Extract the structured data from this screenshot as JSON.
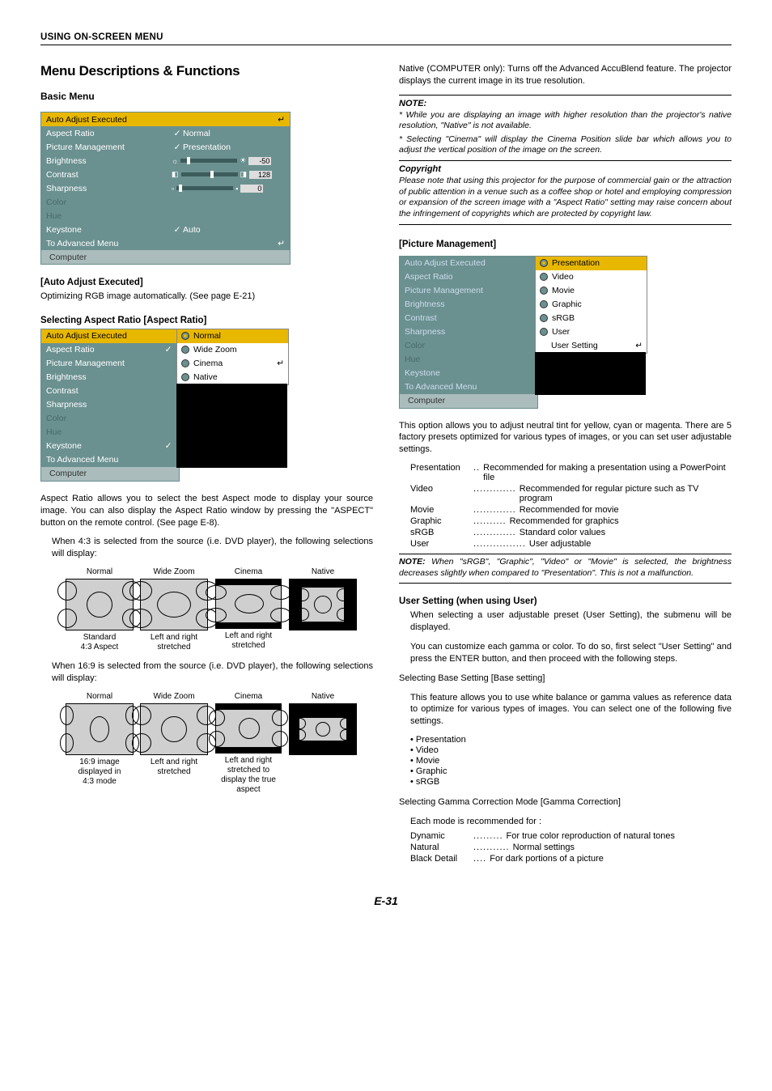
{
  "page_header": "USING ON-SCREEN MENU",
  "page_number": "E-31",
  "left": {
    "title": "Menu Descriptions & Functions",
    "basic_menu": "Basic Menu",
    "panel1": {
      "rows": [
        "Auto Adjust Executed",
        "Aspect Ratio",
        "Picture Management",
        "Brightness",
        "Contrast",
        "Sharpness",
        "Color",
        "Hue",
        "Keystone",
        "To Advanced Menu"
      ],
      "r1_val": "Normal",
      "r2_val": "Presentation",
      "bright_val": "-50",
      "contrast_val": "128",
      "sharp_val": "0",
      "keystone_val": "Auto",
      "foot": "Computer"
    },
    "auto_h": "[Auto Adjust Executed]",
    "auto_p": "Optimizing RGB image automatically. (See page E-21)",
    "aspect_h": "Selecting Aspect Ratio [Aspect Ratio]",
    "panel2": {
      "left_rows": [
        "Auto Adjust Executed",
        "Aspect Ratio",
        "Picture Management",
        "Brightness",
        "Contrast",
        "Sharpness",
        "Color",
        "Hue",
        "Keystone",
        "To Advanced Menu"
      ],
      "foot": "Computer",
      "pop": [
        "Normal",
        "Wide Zoom",
        "Cinema",
        "Native"
      ]
    },
    "aspect_p": "Aspect Ratio allows you to select the best Aspect mode to display your source image. You can also display the Aspect Ratio window by pressing the \"ASPECT\" button on the remote control. (See page E-8).",
    "p43": "When 4:3 is selected from the source (i.e. DVD player), the following selections will display:",
    "labels43": [
      "Normal",
      "Wide Zoom",
      "Cinema",
      "Native"
    ],
    "caps43": [
      "Standard\n4:3 Aspect",
      "Left and right\nstretched",
      "Left and right\nstretched",
      ""
    ],
    "p169": "When 16:9 is selected from the source (i.e. DVD player), the following selections will display:",
    "labels169": [
      "Normal",
      "Wide Zoom",
      "Cinema",
      "Native"
    ],
    "caps169": [
      "16:9 image\ndisplayed in\n4:3 mode",
      "Left and right\nstretched",
      "Left and right\nstretched to\ndisplay the true\naspect",
      ""
    ]
  },
  "right": {
    "native_p": "Native (COMPUTER only): Turns off the Advanced AccuBlend feature. The projector displays the current image in its true resolution.",
    "note_h": "NOTE:",
    "note1": "* While you are displaying an image with higher resolution than the projector's native resolution, \"Native\" is not available.",
    "note2": "* Selecting \"Cinema\" will display the Cinema Position slide bar which allows you to adjust the vertical position of the image on the screen.",
    "copy_h": "Copyright",
    "copy_p": "Please note that using this projector for the purpose of commercial gain or the attraction of public attention in a venue such as a coffee shop or hotel and employing compression or expansion of the screen image with a \"Aspect Ratio\" setting may raise concern about the infringement of copyrights which are protected by copyright law.",
    "pm_h": "[Picture Management]",
    "panel3": {
      "left_rows": [
        "Auto Adjust Executed",
        "Aspect Ratio",
        "Picture Management",
        "Brightness",
        "Contrast",
        "Sharpness",
        "Color",
        "Hue",
        "Keystone",
        "To Advanced Menu"
      ],
      "foot": "Computer",
      "pop": [
        "Presentation",
        "Video",
        "Movie",
        "Graphic",
        "sRGB",
        "User",
        "User Setting"
      ]
    },
    "pm_p": "This option allows you to adjust neutral tint for yellow, cyan or magenta. There are 5 factory presets optimized for various types of images, or you can set user adjustable settings.",
    "presets": [
      {
        "t": "Presentation",
        "d": "Recommended for making a presentation using a PowerPoint file"
      },
      {
        "t": "Video",
        "d": "Recommended for regular picture such as TV program"
      },
      {
        "t": "Movie",
        "d": "Recommended for movie"
      },
      {
        "t": "Graphic",
        "d": "Recommended for graphics"
      },
      {
        "t": "sRGB",
        "d": "Standard color values"
      },
      {
        "t": "User",
        "d": "User adjustable"
      }
    ],
    "note3": "When \"sRGB\", \"Graphic\", \"Video\" or \"Movie\" is selected, the brightness decreases slightly when compared to \"Presentation\". This is not a malfunction.",
    "user_h": "User Setting (when using User)",
    "user_p1": "When selecting a user adjustable preset (User Setting), the submenu will be displayed.",
    "user_p2": "You can customize each gamma or color. To do so, first select \"User Setting\" and press the ENTER button, and then proceed with the following steps.",
    "base_h": "Selecting Base Setting [Base setting]",
    "base_p": "This feature allows you to use white balance or gamma values as reference data to optimize for various types of images. You can select one of the following five settings.",
    "base_items": [
      "Presentation",
      "Video",
      "Movie",
      "Graphic",
      "sRGB"
    ],
    "gamma_h": "Selecting Gamma Correction Mode [Gamma Correction]",
    "gamma_intro": "Each mode is recommended for :",
    "gamma": [
      {
        "t": "Dynamic",
        "d": "For true color reproduction of natural tones"
      },
      {
        "t": "Natural",
        "d": "Normal settings"
      },
      {
        "t": "Black Detail",
        "d": "For dark portions of a picture"
      }
    ]
  }
}
